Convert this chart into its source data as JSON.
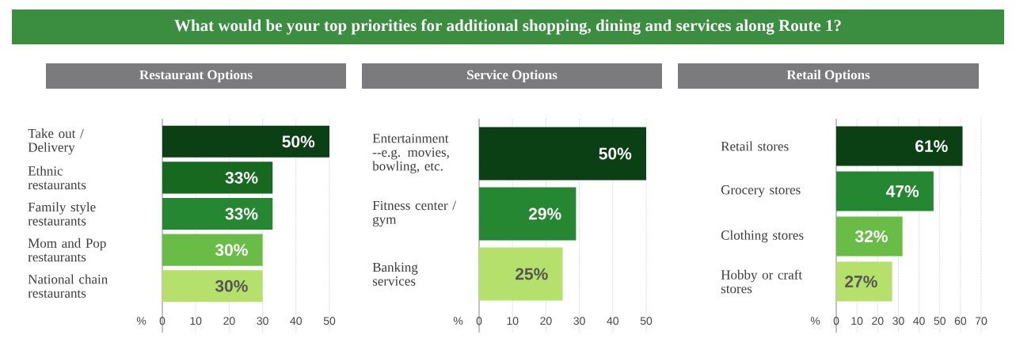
{
  "chart_data": [
    {
      "type": "bar",
      "orientation": "horizontal",
      "title": "What would be your top priorities for additional shopping, dining and services along Route 1?",
      "subtitle": "Restaurant Options",
      "xlabel": "%",
      "categories": [
        "Take out / Delivery",
        "Ethnic restaurants",
        "Family style restaurants",
        "Mom and Pop restaurants",
        "National chain restaurants"
      ],
      "values": [
        50,
        33,
        33,
        30,
        30
      ],
      "colors": [
        "#0b4015",
        "#17691f",
        "#268733",
        "#69bd47",
        "#b5e06c"
      ],
      "value_labels": [
        "50%",
        "33%",
        "33%",
        "30%",
        "30%"
      ],
      "xlim": [
        0,
        50
      ],
      "xticks": [
        0,
        10,
        20,
        30,
        40,
        50
      ],
      "grid": "x"
    },
    {
      "type": "bar",
      "orientation": "horizontal",
      "subtitle": "Service Options",
      "xlabel": "%",
      "categories": [
        "Entertainment --e.g. movies, bowling, etc.",
        "Fitness center / gym",
        "Banking services"
      ],
      "values": [
        50,
        29,
        25
      ],
      "colors": [
        "#0b4015",
        "#268733",
        "#b5e06c"
      ],
      "value_labels": [
        "50%",
        "29%",
        "25%"
      ],
      "xlim": [
        0,
        50
      ],
      "xticks": [
        0,
        10,
        20,
        30,
        40,
        50
      ],
      "grid": "x"
    },
    {
      "type": "bar",
      "orientation": "horizontal",
      "subtitle": "Retail Options",
      "xlabel": "%",
      "categories": [
        "Retail stores",
        "Grocery stores",
        "Clothing stores",
        "Hobby or craft stores"
      ],
      "values": [
        61,
        47,
        32,
        27
      ],
      "colors": [
        "#0b4015",
        "#268733",
        "#69bd47",
        "#b5e06c"
      ],
      "value_labels": [
        "61%",
        "47%",
        "32%",
        "27%"
      ],
      "xlim": [
        0,
        70
      ],
      "xticks": [
        0,
        10,
        20,
        30,
        40,
        50,
        60,
        70
      ],
      "grid": "x"
    }
  ]
}
